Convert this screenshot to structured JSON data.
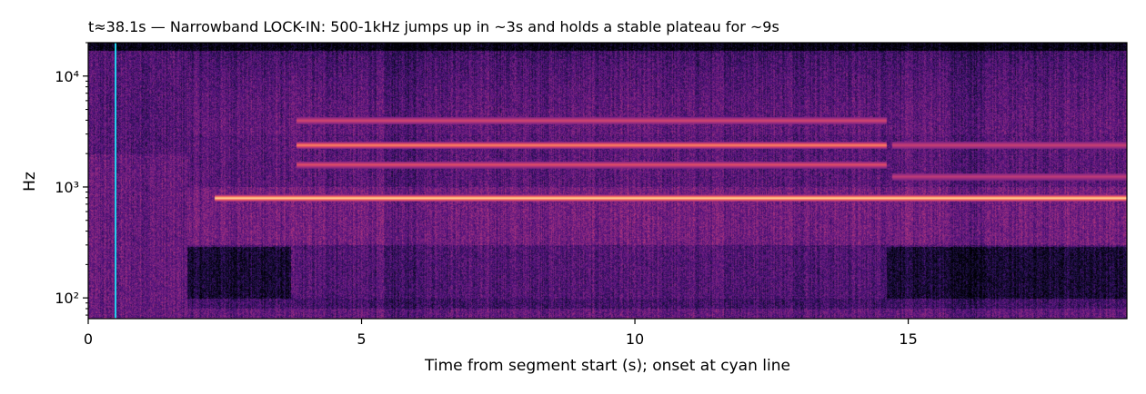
{
  "chart_data": {
    "type": "heatmap",
    "title": "t≈38.1s  —  Narrowband LOCK-IN: 500-1kHz jumps up in ~3s and holds a stable plateau for ~9s",
    "xlabel": "Time from segment start (s); onset at cyan line",
    "ylabel": "Hz",
    "x_scale": "linear",
    "y_scale": "log",
    "xlim": [
      0,
      19
    ],
    "ylim": [
      65,
      20000
    ],
    "x_ticks": [
      0,
      5,
      10,
      15
    ],
    "x_tick_labels": [
      "0",
      "5",
      "10",
      "15"
    ],
    "y_ticks": [
      100,
      1000,
      10000
    ],
    "y_tick_labels": [
      "10²",
      "10³",
      "10⁴"
    ],
    "colormap": "magma",
    "onset_line": {
      "x": 0.5,
      "color": "#22d3ee"
    },
    "tonal_lines": [
      {
        "freq_hz": 800,
        "x_start": 2.3,
        "x_end": 19,
        "intensity": 1.0
      },
      {
        "freq_hz": 2400,
        "x_start": 3.8,
        "x_end": 14.6,
        "intensity": 0.7
      },
      {
        "freq_hz": 1600,
        "x_start": 3.8,
        "x_end": 14.6,
        "intensity": 0.45
      },
      {
        "freq_hz": 4000,
        "x_start": 3.8,
        "x_end": 14.6,
        "intensity": 0.4
      },
      {
        "freq_hz": 2400,
        "x_start": 14.7,
        "x_end": 19,
        "intensity": 0.35
      },
      {
        "freq_hz": 1250,
        "x_start": 14.7,
        "x_end": 19,
        "intensity": 0.3
      }
    ],
    "segments": [
      {
        "x_start": 0,
        "x_end": 1.8,
        "description": "broadband onset"
      },
      {
        "x_start": 1.8,
        "x_end": 3.7,
        "description": "low band suppressed"
      },
      {
        "x_start": 3.7,
        "x_end": 14.6,
        "description": "stable plateau"
      },
      {
        "x_start": 14.6,
        "x_end": 19,
        "description": "low band suppressed"
      }
    ]
  }
}
